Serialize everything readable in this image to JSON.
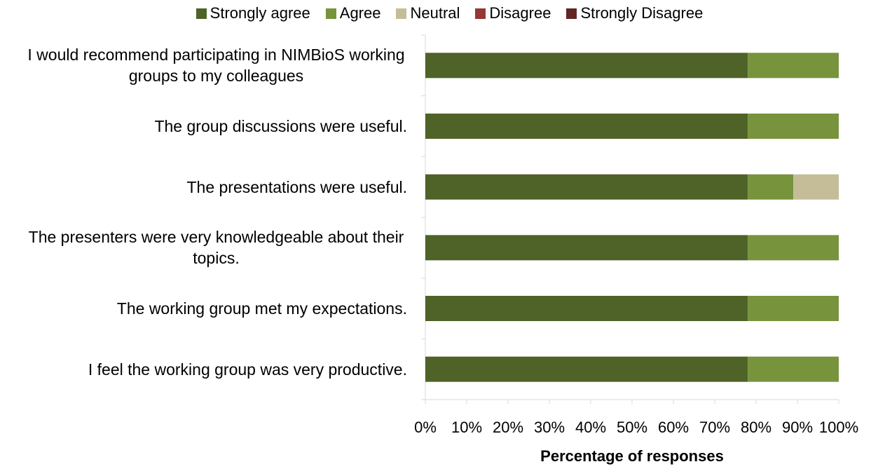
{
  "chart_data": {
    "type": "stacked_barh",
    "categories": [
      "I would recommend participating in NIMBioS working groups to my colleagues",
      "The group discussions were useful.",
      "The presentations were useful.",
      "The presenters were very knowledgeable about their topics.",
      "The working group met my expectations.",
      "I feel the working group was very productive."
    ],
    "series": [
      {
        "name": "Strongly agree",
        "color": "#4f6228",
        "values": [
          78,
          78,
          78,
          78,
          78,
          78
        ]
      },
      {
        "name": "Agree",
        "color": "#77933c",
        "values": [
          22,
          22,
          11,
          22,
          22,
          22
        ]
      },
      {
        "name": "Neutral",
        "color": "#c4bd97",
        "values": [
          0,
          0,
          11,
          0,
          0,
          0
        ]
      },
      {
        "name": "Disagree",
        "color": "#953735",
        "values": [
          0,
          0,
          0,
          0,
          0,
          0
        ]
      },
      {
        "name": "Strongly Disagree",
        "color": "#632523",
        "values": [
          0,
          0,
          0,
          0,
          0,
          0
        ]
      }
    ],
    "xlim": [
      0,
      100
    ],
    "xticks": [
      {
        "value": 0,
        "label": "0%"
      },
      {
        "value": 10,
        "label": "10%"
      },
      {
        "value": 20,
        "label": "20%"
      },
      {
        "value": 30,
        "label": "30%"
      },
      {
        "value": 40,
        "label": "40%"
      },
      {
        "value": 50,
        "label": "50%"
      },
      {
        "value": 60,
        "label": "60%"
      },
      {
        "value": 70,
        "label": "70%"
      },
      {
        "value": 80,
        "label": "80%"
      },
      {
        "value": 90,
        "label": "90%"
      },
      {
        "value": 100,
        "label": "100%"
      }
    ],
    "xlabel": "Percentage of responses",
    "legend": "top"
  }
}
